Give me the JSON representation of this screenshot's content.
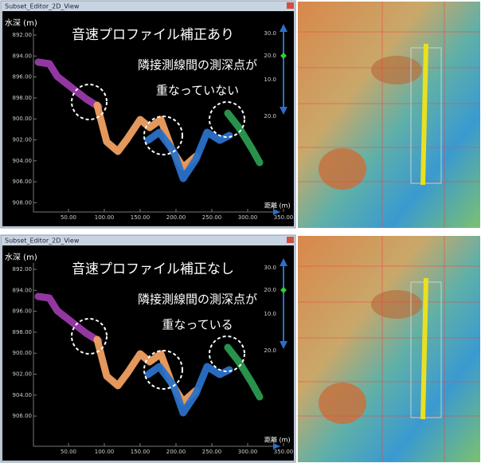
{
  "panels": [
    {
      "window_title": "Subset_Editor_2D_View",
      "y_axis_label": "水深 (m)",
      "y_ticks": [
        "892.00",
        "894.00",
        "896.00",
        "898.00",
        "900.00",
        "902.00",
        "904.00",
        "906.00",
        "908.00"
      ],
      "x_axis_label": "距離 (m)",
      "x_ticks": [
        "50.00",
        "100.00",
        "150.00",
        "200.00",
        "250.00",
        "300.00",
        "350.00"
      ],
      "scale_ticks": [
        "30.0",
        "20.0",
        "10.0",
        "20.0"
      ],
      "annotations": [
        "音速プロファイル補正あり",
        "隣接測線間の測深点が",
        "重なっていない"
      ]
    },
    {
      "window_title": "Subset_Editor_2D_View",
      "y_axis_label": "水深 (m)",
      "y_ticks": [
        "892.00",
        "894.00",
        "896.00",
        "898.00",
        "900.00",
        "902.00",
        "904.00",
        "906.00"
      ],
      "x_axis_label": "距離 (m)",
      "x_ticks": [
        "50.00",
        "100.00",
        "150.00",
        "200.00",
        "250.00",
        "300.00",
        "350.00"
      ],
      "scale_ticks": [
        "30.0",
        "20.0",
        "10.0",
        "20.0"
      ],
      "annotations": [
        "音速プロファイル補正なし",
        "隣接測線間の測深点が",
        "重なっている"
      ]
    }
  ]
}
